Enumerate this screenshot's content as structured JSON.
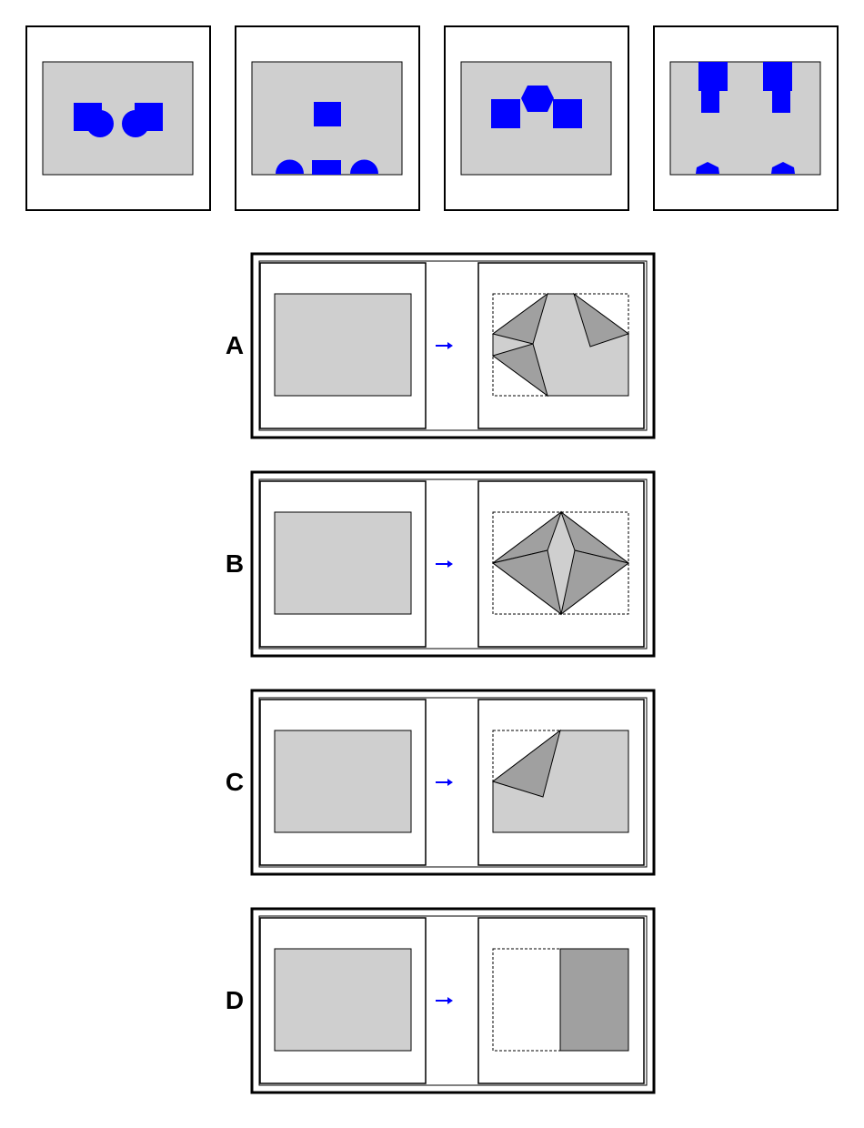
{
  "colors": {
    "paper": "#cfcfcf",
    "fold": "#a0a0a0",
    "hole": "#0000ff",
    "arrow": "#0000ff",
    "outline": "#000000"
  },
  "puzzle": {
    "result_panels": [
      {
        "name": "result-panel-1",
        "holes": [
          "square",
          "circle",
          "circle",
          "square"
        ]
      },
      {
        "name": "result-panel-2",
        "holes": [
          "square",
          "circle",
          "square",
          "circle"
        ]
      },
      {
        "name": "result-panel-3",
        "holes": [
          "square",
          "hexagon",
          "hexagon",
          "square"
        ]
      },
      {
        "name": "result-panel-4",
        "holes": [
          "square",
          "square",
          "square",
          "square",
          "square",
          "square",
          "pentagon",
          "pentagon"
        ]
      }
    ],
    "options": [
      {
        "label": "A",
        "fold": "multiple-corner-folds"
      },
      {
        "label": "B",
        "fold": "diamond-folds"
      },
      {
        "label": "C",
        "fold": "top-left-corner-fold"
      },
      {
        "label": "D",
        "fold": "half-fold-left-to-right"
      }
    ]
  }
}
